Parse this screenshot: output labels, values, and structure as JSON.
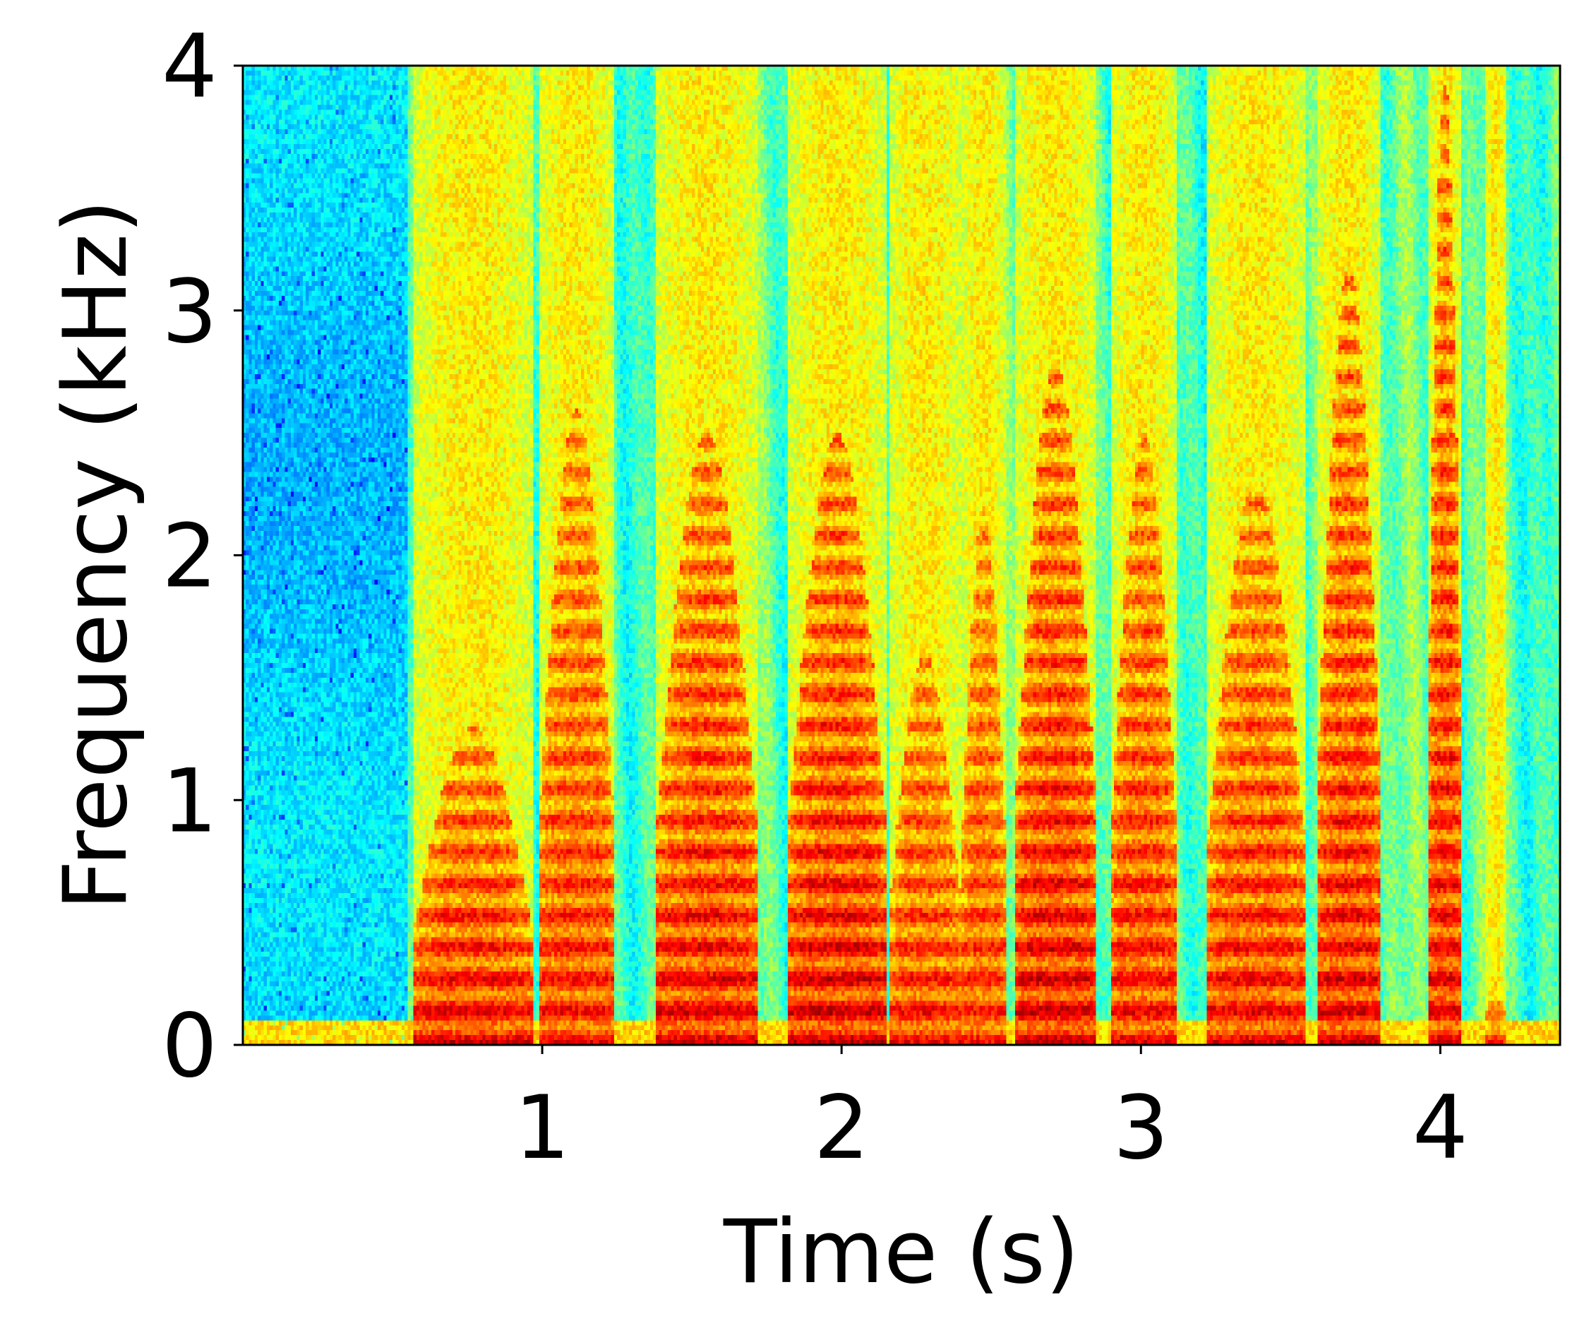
{
  "chart_data": {
    "type": "heatmap",
    "title": "",
    "xlabel": "Time (s)",
    "ylabel": "Frequency (kHz)",
    "xlim": [
      0,
      4.4
    ],
    "ylim": [
      0,
      4
    ],
    "x_ticks": [
      1,
      2,
      3,
      4
    ],
    "x_tick_labels": [
      "1",
      "2",
      "3",
      "4"
    ],
    "y_ticks": [
      0,
      1,
      2,
      3,
      4
    ],
    "y_tick_labels": [
      "0",
      "1",
      "2",
      "3",
      "4"
    ],
    "colormap": "jet",
    "grid": false,
    "segments": [
      {
        "start": 0.57,
        "end": 0.97,
        "peak_khz": 1.3,
        "intensity": 0.95
      },
      {
        "start": 0.99,
        "end": 1.24,
        "peak_khz": 2.6,
        "intensity": 0.85
      },
      {
        "start": 1.38,
        "end": 1.72,
        "peak_khz": 2.5,
        "intensity": 0.95
      },
      {
        "start": 1.82,
        "end": 2.15,
        "peak_khz": 2.5,
        "intensity": 1.0
      },
      {
        "start": 2.16,
        "end": 2.4,
        "peak_khz": 1.6,
        "intensity": 0.85
      },
      {
        "start": 2.4,
        "end": 2.55,
        "peak_khz": 2.2,
        "intensity": 0.8
      },
      {
        "start": 2.58,
        "end": 2.85,
        "peak_khz": 2.8,
        "intensity": 1.0
      },
      {
        "start": 2.9,
        "end": 3.12,
        "peak_khz": 2.5,
        "intensity": 0.9
      },
      {
        "start": 3.22,
        "end": 3.55,
        "peak_khz": 2.3,
        "intensity": 0.9
      },
      {
        "start": 3.59,
        "end": 3.8,
        "peak_khz": 3.2,
        "intensity": 0.95
      },
      {
        "start": 3.96,
        "end": 4.07,
        "peak_khz": 4.0,
        "intensity": 0.95
      },
      {
        "start": 4.15,
        "end": 4.22,
        "peak_khz": 0.25,
        "intensity": 0.7
      }
    ]
  }
}
